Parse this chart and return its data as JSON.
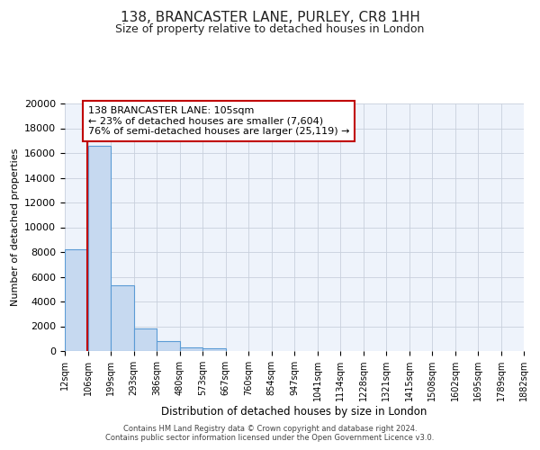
{
  "title": "138, BRANCASTER LANE, PURLEY, CR8 1HH",
  "subtitle": "Size of property relative to detached houses in London",
  "xlabel": "Distribution of detached houses by size in London",
  "ylabel": "Number of detached properties",
  "bar_edges": [
    12,
    106,
    199,
    293,
    386,
    480,
    573,
    667,
    760,
    854,
    947,
    1041,
    1134,
    1228,
    1321,
    1415,
    1508,
    1602,
    1695,
    1789,
    1882
  ],
  "bar_heights": [
    8200,
    16600,
    5300,
    1800,
    800,
    300,
    200,
    0,
    0,
    0,
    0,
    0,
    0,
    0,
    0,
    0,
    0,
    0,
    0,
    0
  ],
  "bar_color": "#c6d9f0",
  "bar_edge_color": "#5b9bd5",
  "property_line_x": 105,
  "property_line_color": "#c00000",
  "annotation_text": "138 BRANCASTER LANE: 105sqm\n← 23% of detached houses are smaller (7,604)\n76% of semi-detached houses are larger (25,119) →",
  "annotation_box_color": "#ffffff",
  "annotation_box_edgecolor": "#c00000",
  "ylim": [
    0,
    20000
  ],
  "yticks": [
    0,
    2000,
    4000,
    6000,
    8000,
    10000,
    12000,
    14000,
    16000,
    18000,
    20000
  ],
  "tick_labels": [
    "12sqm",
    "106sqm",
    "199sqm",
    "293sqm",
    "386sqm",
    "480sqm",
    "573sqm",
    "667sqm",
    "760sqm",
    "854sqm",
    "947sqm",
    "1041sqm",
    "1134sqm",
    "1228sqm",
    "1321sqm",
    "1415sqm",
    "1508sqm",
    "1602sqm",
    "1695sqm",
    "1789sqm",
    "1882sqm"
  ],
  "footer_line1": "Contains HM Land Registry data © Crown copyright and database right 2024.",
  "footer_line2": "Contains public sector information licensed under the Open Government Licence v3.0.",
  "grid_color": "#c8d0dc",
  "bg_color": "#eef3fb",
  "fig_bg_color": "#ffffff",
  "title_fontsize": 11,
  "subtitle_fontsize": 9,
  "annotation_fontsize": 8
}
